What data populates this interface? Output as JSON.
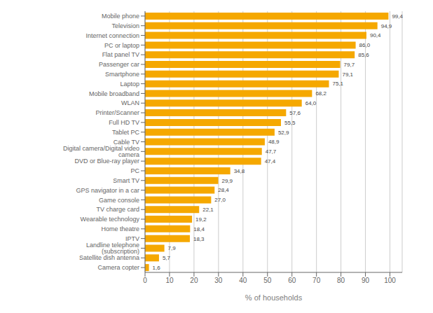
{
  "chart_data": {
    "type": "bar",
    "orientation": "horizontal",
    "categories": [
      "Camera copter",
      "Satellite dish antenna",
      "Landline telephone (subscription)",
      "IPTV",
      "Home theatre",
      "Wearable technology",
      "TV charge card",
      "Game console",
      "GPS navigator in a car",
      "Smart TV",
      "PC",
      "DVD or Blue-ray player",
      "Digital camera/Digital video camera",
      "Cable TV",
      "Tablet PC",
      "Full HD TV",
      "Printer/Scanner",
      "WLAN",
      "Mobile broadband",
      "Laptop",
      "Smartphone",
      "Passenger car",
      "Flat panel TV",
      "PC or laptop",
      "Internet connection",
      "Television",
      "Mobile phone"
    ],
    "values": [
      1.6,
      5.7,
      7.9,
      18.3,
      18.4,
      19.2,
      22.1,
      27.0,
      28.4,
      29.9,
      34.8,
      47.4,
      47.7,
      48.9,
      52.9,
      55.5,
      57.6,
      64.0,
      68.2,
      75.1,
      79.1,
      79.7,
      85.6,
      86.0,
      90.4,
      94.9,
      99.4
    ],
    "value_labels": [
      "1,6",
      "5,7",
      "7,9",
      "18,3",
      "18,4",
      "19,2",
      "22,1",
      "27,0",
      "28,4",
      "29,9",
      "34,8",
      "47,4",
      "47,7",
      "48,9",
      "52,9",
      "55,5",
      "57,6",
      "64,0",
      "68,2",
      "75,1",
      "79,1",
      "79,7",
      "85,6",
      "86,0",
      "90,4",
      "94,9",
      "99,4"
    ],
    "color": "#F5A800",
    "xlabel": "% of households",
    "xlim": [
      0,
      105
    ],
    "xticks": [
      0,
      10,
      20,
      30,
      40,
      50,
      60,
      70,
      80,
      90,
      100
    ],
    "grid": true,
    "data_labels": true
  }
}
